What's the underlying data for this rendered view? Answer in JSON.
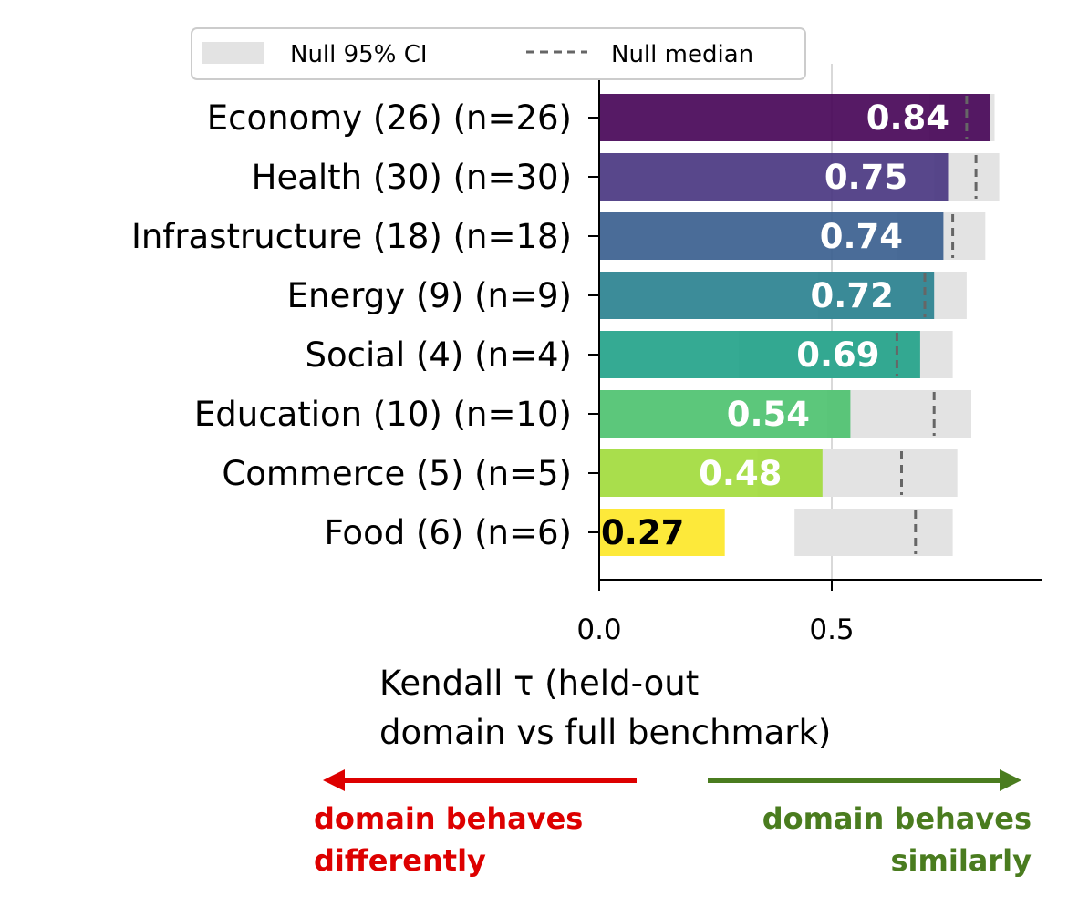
{
  "chart_data": {
    "type": "bar",
    "orientation": "horizontal",
    "categories": [
      "Economy (26) (n=26)",
      "Health (30) (n=30)",
      "Infrastructure (18) (n=18)",
      "Energy (9) (n=9)",
      "Social (4) (n=4)",
      "Education (10) (n=10)",
      "Commerce (5) (n=5)",
      "Food (6) (n=6)"
    ],
    "values": [
      0.84,
      0.75,
      0.74,
      0.72,
      0.69,
      0.54,
      0.48,
      0.27
    ],
    "value_labels": [
      "0.84",
      "0.75",
      "0.74",
      "0.72",
      "0.69",
      "0.54",
      "0.48",
      "0.27"
    ],
    "null_ci": [
      [
        0.71,
        0.85
      ],
      [
        0.72,
        0.86
      ],
      [
        0.64,
        0.83
      ],
      [
        0.47,
        0.79
      ],
      [
        0.3,
        0.76
      ],
      [
        0.49,
        0.8
      ],
      [
        0.34,
        0.77
      ],
      [
        0.42,
        0.76
      ]
    ],
    "null_median": [
      0.79,
      0.81,
      0.76,
      0.7,
      0.64,
      0.72,
      0.65,
      0.68
    ],
    "bar_colors": [
      "#440154",
      "#46337e",
      "#365c8d",
      "#277f8e",
      "#1fa187",
      "#4ac16d",
      "#a0da39",
      "#fde725"
    ],
    "label_colors": [
      "#ffffff",
      "#ffffff",
      "#ffffff",
      "#ffffff",
      "#ffffff",
      "#ffffff",
      "#ffffff",
      "#000000"
    ],
    "xlabel_line1": "Kendall τ (held-out",
    "xlabel_line2": "domain vs full benchmark)",
    "xlim": [
      0,
      0.95
    ],
    "xticks": [
      0.0,
      0.5
    ],
    "xtick_labels": [
      "0.0",
      "0.5"
    ],
    "grid": "vertical line at 0.5",
    "legend_position": "top",
    "legend": {
      "ci_label": "Null 95% CI",
      "median_label": "Null median"
    },
    "annotations": {
      "left_line1": "domain behaves",
      "left_line2": "differently",
      "left_color": "#dd0000",
      "right_line1": "domain behaves",
      "right_line2": "similarly",
      "right_color": "#4a7c1f"
    }
  }
}
